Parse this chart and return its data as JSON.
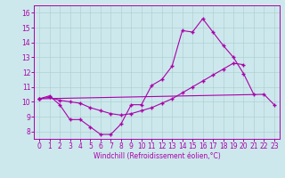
{
  "xlabel": "Windchill (Refroidissement éolien,°C)",
  "bg_color": "#cce8ec",
  "line_color": "#aa00aa",
  "xlim": [
    -0.5,
    23.5
  ],
  "ylim": [
    7.5,
    16.5
  ],
  "xticks": [
    0,
    1,
    2,
    3,
    4,
    5,
    6,
    7,
    8,
    9,
    10,
    11,
    12,
    13,
    14,
    15,
    16,
    17,
    18,
    19,
    20,
    21,
    22,
    23
  ],
  "yticks": [
    8,
    9,
    10,
    11,
    12,
    13,
    14,
    15,
    16
  ],
  "series": [
    {
      "x": [
        0,
        1,
        2,
        3,
        4,
        5,
        6,
        7,
        8,
        9,
        10,
        11,
        12,
        13,
        14,
        15,
        16,
        17,
        18,
        19,
        20,
        21
      ],
      "y": [
        10.2,
        10.4,
        9.8,
        8.8,
        8.8,
        8.3,
        7.8,
        7.8,
        8.5,
        9.8,
        9.8,
        11.1,
        11.5,
        12.4,
        14.8,
        14.7,
        15.6,
        14.7,
        13.8,
        13.0,
        11.9,
        10.5
      ]
    },
    {
      "x": [
        0,
        1,
        2,
        3,
        4,
        5,
        6,
        7,
        8,
        9,
        10,
        11,
        12,
        13,
        14,
        15,
        16,
        17,
        18,
        19,
        20
      ],
      "y": [
        10.2,
        10.3,
        10.1,
        10.0,
        9.9,
        9.6,
        9.4,
        9.2,
        9.1,
        9.2,
        9.4,
        9.6,
        9.9,
        10.2,
        10.6,
        11.0,
        11.4,
        11.8,
        12.2,
        12.6,
        12.5
      ]
    },
    {
      "x": [
        0,
        22,
        23
      ],
      "y": [
        10.2,
        10.5,
        9.8
      ]
    }
  ]
}
